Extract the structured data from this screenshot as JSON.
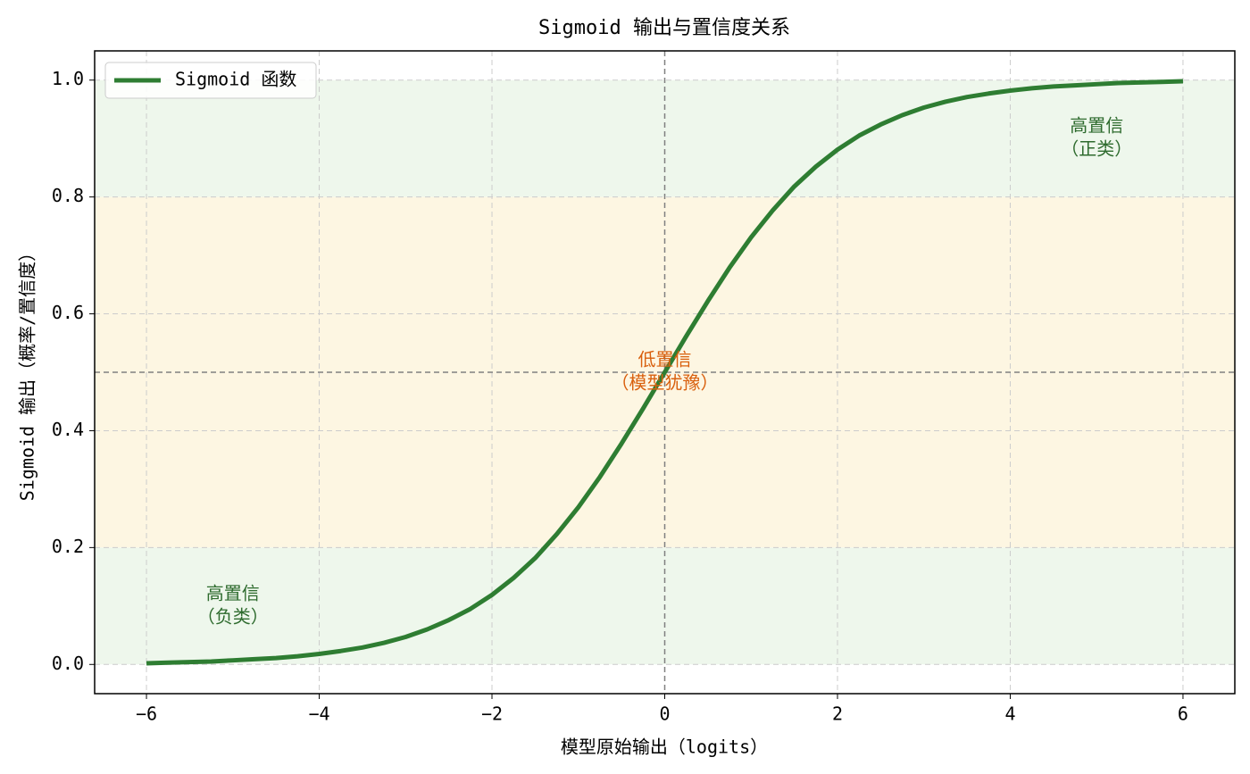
{
  "chart_data": {
    "type": "line",
    "title": "Sigmoid 输出与置信度关系",
    "xlabel": "模型原始输出（logits）",
    "ylabel": "Sigmoid 输出（概率/置信度）",
    "x": [
      -6,
      -5.75,
      -5.5,
      -5.25,
      -5,
      -4.75,
      -4.5,
      -4.25,
      -4,
      -3.75,
      -3.5,
      -3.25,
      -3,
      -2.75,
      -2.5,
      -2.25,
      -2,
      -1.75,
      -1.5,
      -1.25,
      -1,
      -0.75,
      -0.5,
      -0.25,
      0,
      0.25,
      0.5,
      0.75,
      1,
      1.25,
      1.5,
      1.75,
      2,
      2.25,
      2.5,
      2.75,
      3,
      3.25,
      3.5,
      3.75,
      4,
      4.25,
      4.5,
      4.75,
      5,
      5.25,
      5.5,
      5.75,
      6
    ],
    "series": [
      {
        "name": "Sigmoid 函数",
        "color": "#2e7d32",
        "values": [
          0.002,
          0.003,
          0.004,
          0.005,
          0.007,
          0.009,
          0.011,
          0.014,
          0.018,
          0.023,
          0.029,
          0.037,
          0.047,
          0.06,
          0.076,
          0.095,
          0.119,
          0.148,
          0.182,
          0.223,
          0.269,
          0.321,
          0.378,
          0.438,
          0.5,
          0.562,
          0.622,
          0.679,
          0.731,
          0.777,
          0.818,
          0.852,
          0.881,
          0.905,
          0.924,
          0.94,
          0.953,
          0.963,
          0.971,
          0.977,
          0.982,
          0.986,
          0.989,
          0.991,
          0.993,
          0.995,
          0.996,
          0.997,
          0.998
        ]
      }
    ],
    "xlim": [
      -6.6,
      6.6
    ],
    "ylim": [
      -0.05,
      1.05
    ],
    "xticks": [
      {
        "value": -6,
        "label": "−6"
      },
      {
        "value": -4,
        "label": "−4"
      },
      {
        "value": -2,
        "label": "−2"
      },
      0,
      2,
      4,
      6
    ],
    "yticks": [
      {
        "value": 0,
        "label": "0.0"
      },
      0.2,
      0.4,
      0.6,
      0.8,
      {
        "value": 1,
        "label": "1.0"
      }
    ],
    "grid": true,
    "legend": "upper left",
    "bands": [
      {
        "from": 0.8,
        "to": 1,
        "color": "#eef7ec"
      },
      {
        "from": 0.2,
        "to": 0.8,
        "color": "#fdf6e2"
      },
      {
        "from": 0,
        "to": 0.2,
        "color": "#eef7ec"
      }
    ],
    "reference_lines": {
      "x": 0,
      "y": 0.5,
      "color": "#808080"
    },
    "annotations": [
      {
        "lines": [
          "高置信",
          "（正类）"
        ],
        "x": 5,
        "y": 0.9,
        "color": "#2e6b2e"
      },
      {
        "lines": [
          "低置信",
          "（模型犹豫）"
        ],
        "x": 0,
        "y": 0.5,
        "color": "#d9600e"
      },
      {
        "lines": [
          "高置信",
          "（负类）"
        ],
        "x": -5,
        "y": 0.1,
        "color": "#2e6b2e"
      }
    ]
  }
}
